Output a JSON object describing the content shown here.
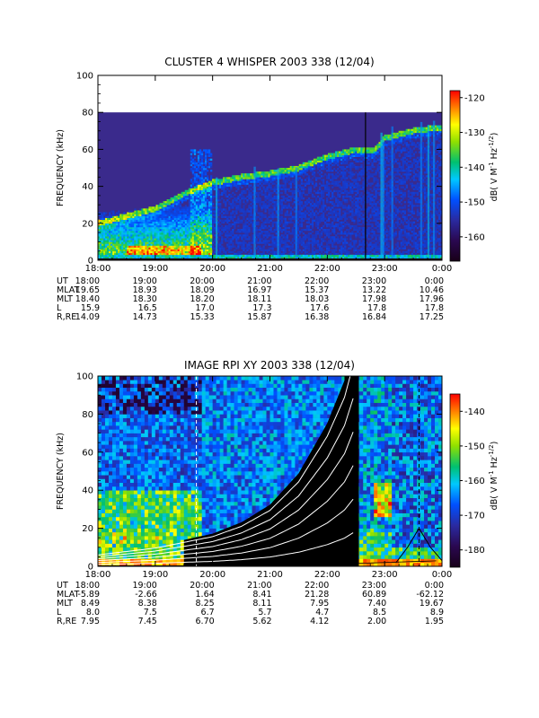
{
  "chart_data": [
    {
      "type": "heatmap",
      "title": "CLUSTER 4 WHISPER 2003 338 (12/04)",
      "ylabel": "FREQUENCY (kHz)",
      "ylim": [
        0,
        100
      ],
      "yticks": [
        "0",
        "20",
        "40",
        "60",
        "80",
        "100"
      ],
      "xticks": [
        "18:00",
        "19:00",
        "20:00",
        "21:00",
        "22:00",
        "23:00",
        "0:00"
      ],
      "data_extent_khz": [
        0,
        80
      ],
      "cyclotron_trace": {
        "time_hours": [
          18.0,
          19.0,
          19.5,
          20.0,
          20.5,
          21.0,
          21.5,
          22.0,
          22.5,
          22.8,
          23.0,
          23.5,
          24.0
        ],
        "frequency_khz": [
          20,
          28,
          36,
          42,
          45,
          47,
          50,
          56,
          60,
          59,
          66,
          70,
          72
        ]
      },
      "vertical_line_time": "22:40",
      "colorbar": {
        "label": "dB( V M^-1 Hz^-1/2 )",
        "ticks": [
          "-120",
          "-130",
          "-140",
          "-150",
          "-160"
        ],
        "range": [
          -167,
          -118
        ]
      },
      "ephemeris": {
        "labels": [
          "UT",
          "MLAT",
          "MLT",
          "L",
          "R,RE"
        ],
        "rows": [
          [
            "18:00",
            "19:00",
            "20:00",
            "21:00",
            "22:00",
            "23:00",
            "0:00"
          ],
          [
            "19.65",
            "18.93",
            "18.09",
            "16.97",
            "15.37",
            "13.22",
            "10.46"
          ],
          [
            "18.40",
            "18.30",
            "18.20",
            "18.11",
            "18.03",
            "17.98",
            "17.96"
          ],
          [
            "15.9",
            "16.5",
            "17.0",
            "17.3",
            "17.6",
            "17.8",
            "17.8"
          ],
          [
            "14.09",
            "14.73",
            "15.33",
            "15.87",
            "16.38",
            "16.84",
            "17.25"
          ]
        ]
      }
    },
    {
      "type": "heatmap",
      "title": "IMAGE RPI XY 2003 338 (12/04)",
      "ylabel": "FREQUENCY (kHz)",
      "ylim": [
        0,
        100
      ],
      "yticks": [
        "0",
        "20",
        "40",
        "60",
        "80",
        "100"
      ],
      "xticks": [
        "18:00",
        "19:00",
        "20:00",
        "21:00",
        "22:00",
        "23:00",
        "0:00"
      ],
      "dashed_line_time": "19:43",
      "cyclotron_harmonics": {
        "time_hours": [
          18.0,
          19.0,
          20.0,
          20.5,
          21.0,
          21.5,
          22.0,
          22.3,
          22.5
        ],
        "fundamental_khz": [
          1.0,
          1.6,
          2.6,
          3.5,
          4.9,
          7.4,
          11.4,
          14.8,
          18.6
        ],
        "harmonic_numbers": [
          1,
          2,
          3,
          4,
          5,
          6
        ]
      },
      "density_bump_curve": {
        "time_hours": [
          23.2,
          23.4,
          23.6,
          23.8,
          24.0
        ],
        "frequency_khz": [
          2,
          10,
          20,
          10,
          3
        ]
      },
      "colorbar": {
        "label": "dB( V M^-1 Hz^-1/2 )",
        "ticks": [
          "-140",
          "-150",
          "-160",
          "-170",
          "-180"
        ],
        "range": [
          -185,
          -135
        ]
      },
      "ephemeris": {
        "labels": [
          "UT",
          "MLAT",
          "MLT",
          "L",
          "R,RE"
        ],
        "rows": [
          [
            "18:00",
            "19:00",
            "20:00",
            "21:00",
            "22:00",
            "23:00",
            "0:00"
          ],
          [
            "-5.89",
            "-2.66",
            "1.64",
            "8.41",
            "21.28",
            "60.89",
            "-62.12"
          ],
          [
            "8.49",
            "8.38",
            "8.25",
            "8.11",
            "7.95",
            "7.40",
            "19.67"
          ],
          [
            "8.0",
            "7.5",
            "6.7",
            "5.7",
            "4.7",
            "8.5",
            "8.9"
          ],
          [
            "7.95",
            "7.45",
            "6.70",
            "5.62",
            "4.12",
            "2.00",
            "1.95"
          ]
        ]
      }
    }
  ]
}
